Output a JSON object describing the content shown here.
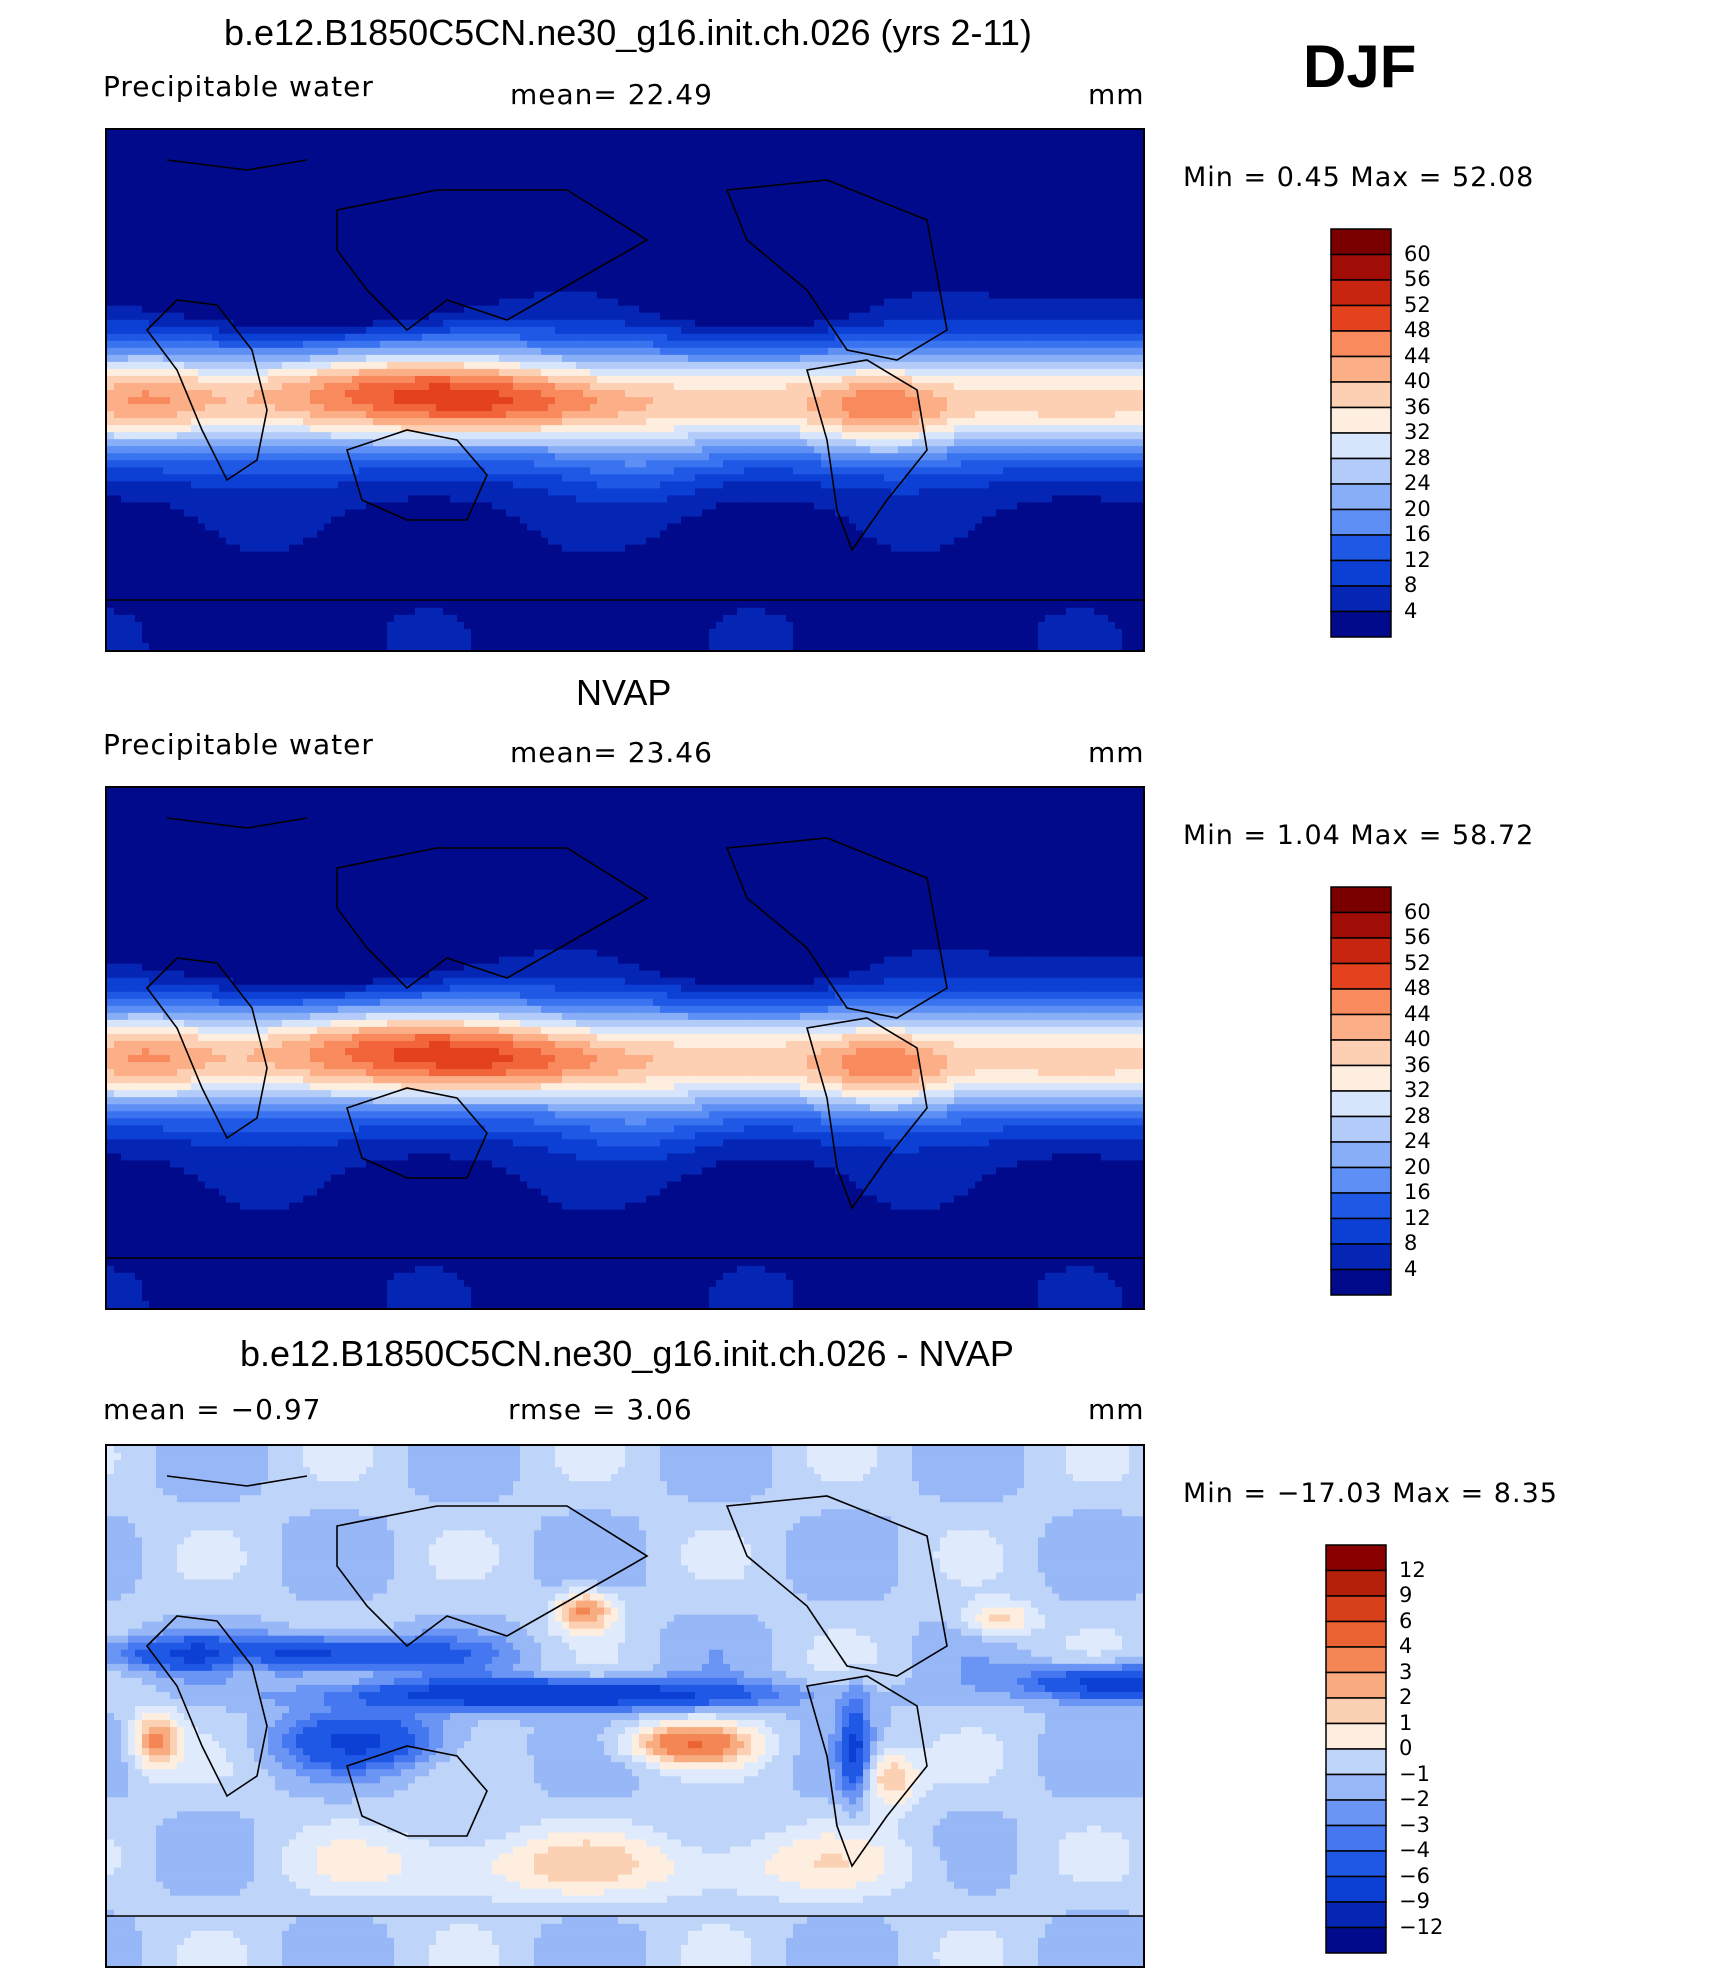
{
  "season": "DJF",
  "colors": {
    "abs_scale": [
      "#020a8c",
      "#0526b4",
      "#0c3fd4",
      "#2058e6",
      "#3a73f0",
      "#5d8ff4",
      "#87aef7",
      "#b2cbf8",
      "#d6e5fb",
      "#fdeee0",
      "#fdd0b4",
      "#fcae87",
      "#f98a5d",
      "#f2653a",
      "#e4421f",
      "#c72510",
      "#a00c06",
      "#7a0000"
    ],
    "diff_scale": [
      "#020a8c",
      "#0526b4",
      "#0c3fd4",
      "#2058e6",
      "#4578f0",
      "#6b95f4",
      "#97b7f7",
      "#bfd4f9",
      "#dfebfc",
      "#fdeee0",
      "#fcd0b2",
      "#f9ab80",
      "#f48655",
      "#ec6333",
      "#d8401b",
      "#b5200b",
      "#8a0000"
    ]
  },
  "panels": [
    {
      "title": "b.e12.B1850C5CN.ne30_g16.init.ch.026 (yrs 2-11)",
      "left_label": "Precipitable  water",
      "center_label": "mean=   22.49",
      "units": "mm",
      "minmax": "Min  =     0.45  Max  =    52.08",
      "colorbar_labels": [
        "60",
        "56",
        "52",
        "48",
        "44",
        "40",
        "36",
        "32",
        "28",
        "24",
        "20",
        "16",
        "12",
        "8",
        "4"
      ]
    },
    {
      "title": "NVAP",
      "left_label": "Precipitable  water",
      "center_label": "mean=   23.46",
      "units": "mm",
      "minmax": "Min  =     1.04  Max  =    58.72",
      "colorbar_labels": [
        "60",
        "56",
        "52",
        "48",
        "44",
        "40",
        "36",
        "32",
        "28",
        "24",
        "20",
        "16",
        "12",
        "8",
        "4"
      ]
    },
    {
      "title": "b.e12.B1850C5CN.ne30_g16.init.ch.026 - NVAP",
      "left_label": "mean  =     −0.97",
      "center_label": "rmse  =      3.06",
      "units": "mm",
      "minmax": "Min  =  −17.03  Max  =     8.35",
      "colorbar_labels": [
        "12",
        "9",
        "6",
        "4",
        "3",
        "2",
        "1",
        "0",
        "−1",
        "−2",
        "−3",
        "−4",
        "−6",
        "−9",
        "−12"
      ]
    }
  ],
  "chart_data": [
    {
      "type": "heatmap",
      "title": "b.e12.B1850C5CN.ne30_g16.init.ch.026 (yrs 2-11)",
      "variable": "Precipitable  water",
      "units": "mm",
      "mean": 22.49,
      "min": 0.45,
      "max": 52.08,
      "levels": [
        4,
        8,
        12,
        16,
        20,
        24,
        28,
        32,
        36,
        40,
        44,
        48,
        52,
        56,
        60
      ],
      "field_model": "tropical_belt"
    },
    {
      "type": "heatmap",
      "title": "NVAP",
      "variable": "Precipitable  water",
      "units": "mm",
      "mean": 23.46,
      "min": 1.04,
      "max": 58.72,
      "levels": [
        4,
        8,
        12,
        16,
        20,
        24,
        28,
        32,
        36,
        40,
        44,
        48,
        52,
        56,
        60
      ],
      "field_model": "tropical_belt"
    },
    {
      "type": "heatmap",
      "title": "b.e12.B1850C5CN.ne30_g16.init.ch.026 - NVAP",
      "units": "mm",
      "mean": -0.97,
      "rmse": 3.06,
      "min": -17.03,
      "max": 8.35,
      "levels": [
        -12,
        -9,
        -6,
        -4,
        -3,
        -2,
        -1,
        0,
        1,
        2,
        3,
        4,
        6,
        9,
        12
      ],
      "field_model": "difference"
    }
  ]
}
